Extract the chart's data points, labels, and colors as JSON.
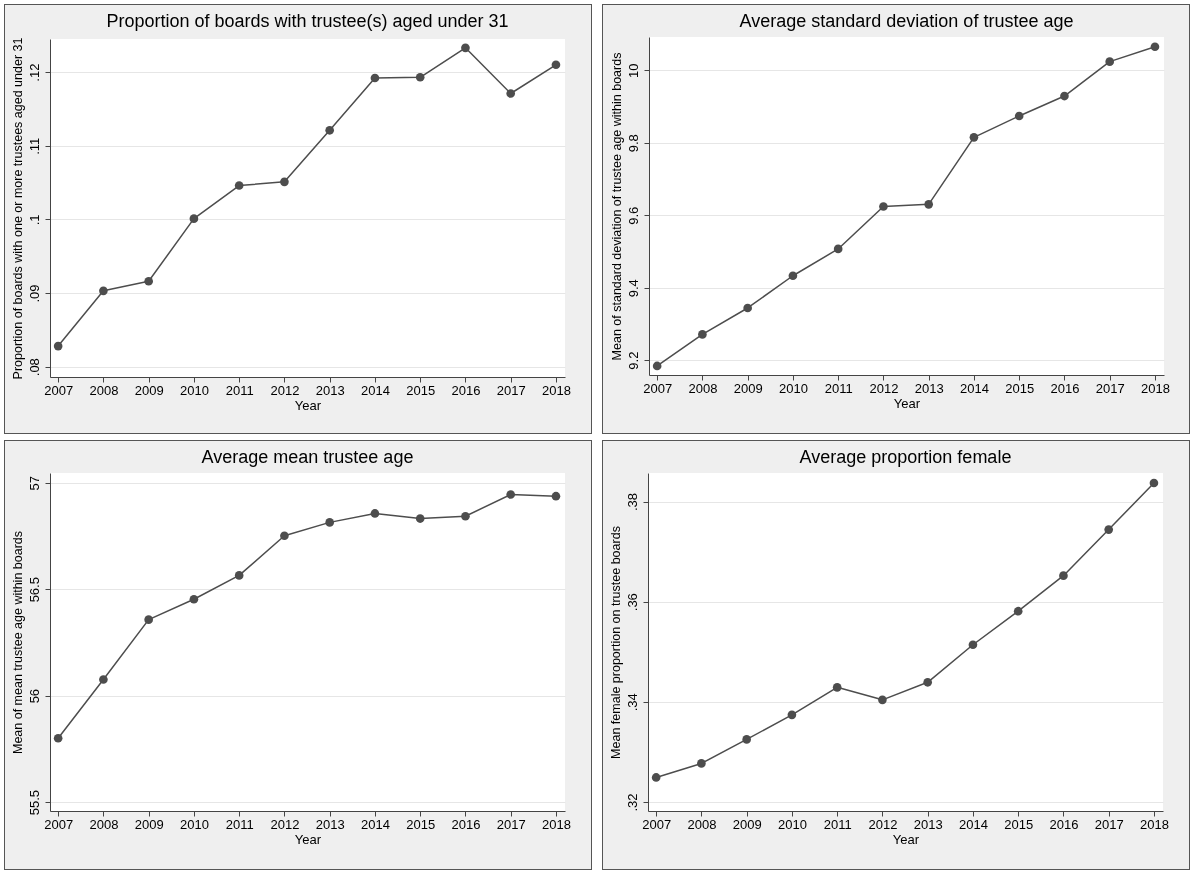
{
  "chart_data": [
    {
      "type": "line",
      "title": "Proportion of boards with trustee(s) aged under 31",
      "xlabel": "Year",
      "ylabel": "Proportion of boards with one or more trustees aged under 31",
      "x": [
        2007,
        2008,
        2009,
        2010,
        2011,
        2012,
        2013,
        2014,
        2015,
        2016,
        2017,
        2018
      ],
      "series": [
        {
          "color": "#4d4d4d",
          "values": [
            0.0828,
            0.0903,
            0.0916,
            0.1001,
            0.1046,
            0.1051,
            0.1121,
            0.1192,
            0.1193,
            0.1233,
            0.1171,
            0.121
          ]
        }
      ],
      "xlim": [
        2006.82,
        2018.2
      ],
      "xticks": [
        2007,
        2008,
        2009,
        2010,
        2011,
        2012,
        2013,
        2014,
        2015,
        2016,
        2017,
        2018
      ],
      "ylim": [
        0.0786,
        0.1245
      ],
      "yticks": [
        {
          "value": 0.08,
          "label": ".08"
        },
        {
          "value": 0.09,
          "label": ".09"
        },
        {
          "value": 0.1,
          "label": ".1"
        },
        {
          "value": 0.11,
          "label": ".11"
        },
        {
          "value": 0.12,
          "label": ".12"
        }
      ],
      "grid": "y",
      "marker": "circle",
      "line_style": "solid"
    },
    {
      "type": "line",
      "title": "Average standard deviation of trustee age",
      "xlabel": "Year",
      "ylabel": "Mean of standard deviation of trustee age within boards",
      "x": [
        2007,
        2008,
        2009,
        2010,
        2011,
        2012,
        2013,
        2014,
        2015,
        2016,
        2017,
        2018
      ],
      "series": [
        {
          "color": "#4d4d4d",
          "values": [
            9.184,
            9.271,
            9.344,
            9.433,
            9.507,
            9.624,
            9.63,
            9.815,
            9.874,
            9.929,
            10.024,
            10.065
          ]
        }
      ],
      "xlim": [
        2006.82,
        2018.2
      ],
      "xticks": [
        2007,
        2008,
        2009,
        2010,
        2011,
        2012,
        2013,
        2014,
        2015,
        2016,
        2017,
        2018
      ],
      "ylim": [
        9.159,
        10.092
      ],
      "yticks": [
        9.2,
        9.4,
        9.6,
        9.8,
        10
      ],
      "grid": "y",
      "marker": "circle",
      "line_style": "solid"
    },
    {
      "type": "line",
      "title": "Average mean trustee age",
      "xlabel": "Year",
      "ylabel": "Mean of mean trustee age within boards",
      "x": [
        2007,
        2008,
        2009,
        2010,
        2011,
        2012,
        2013,
        2014,
        2015,
        2016,
        2017,
        2018
      ],
      "series": [
        {
          "color": "#4d4d4d",
          "values": [
            55.8,
            56.076,
            56.357,
            56.453,
            56.565,
            56.751,
            56.814,
            56.856,
            56.832,
            56.843,
            56.945,
            56.937
          ]
        }
      ],
      "xlim": [
        2006.82,
        2018.2
      ],
      "xticks": [
        2007,
        2008,
        2009,
        2010,
        2011,
        2012,
        2013,
        2014,
        2015,
        2016,
        2017,
        2018
      ],
      "ylim": [
        55.458,
        57.046
      ],
      "yticks": [
        55.5,
        56,
        56.5,
        57
      ],
      "grid": "y",
      "marker": "circle",
      "line_style": "solid"
    },
    {
      "type": "line",
      "title": "Average proportion female",
      "xlabel": "Year",
      "ylabel": "Mean female proportion on trustee boards",
      "x": [
        2007,
        2008,
        2009,
        2010,
        2011,
        2012,
        2013,
        2014,
        2015,
        2016,
        2017,
        2018
      ],
      "series": [
        {
          "color": "#4d4d4d",
          "values": [
            0.3249,
            0.3277,
            0.3325,
            0.3374,
            0.3429,
            0.3404,
            0.3439,
            0.3514,
            0.3581,
            0.3652,
            0.3744,
            0.3837
          ]
        }
      ],
      "xlim": [
        2006.82,
        2018.2
      ],
      "xticks": [
        2007,
        2008,
        2009,
        2010,
        2011,
        2012,
        2013,
        2014,
        2015,
        2016,
        2017,
        2018
      ],
      "ylim": [
        0.3182,
        0.3857
      ],
      "yticks": [
        {
          "value": 0.32,
          "label": ".32"
        },
        {
          "value": 0.34,
          "label": ".34"
        },
        {
          "value": 0.36,
          "label": ".36"
        },
        {
          "value": 0.38,
          "label": ".38"
        }
      ],
      "grid": "y",
      "marker": "circle",
      "line_style": "solid"
    }
  ]
}
